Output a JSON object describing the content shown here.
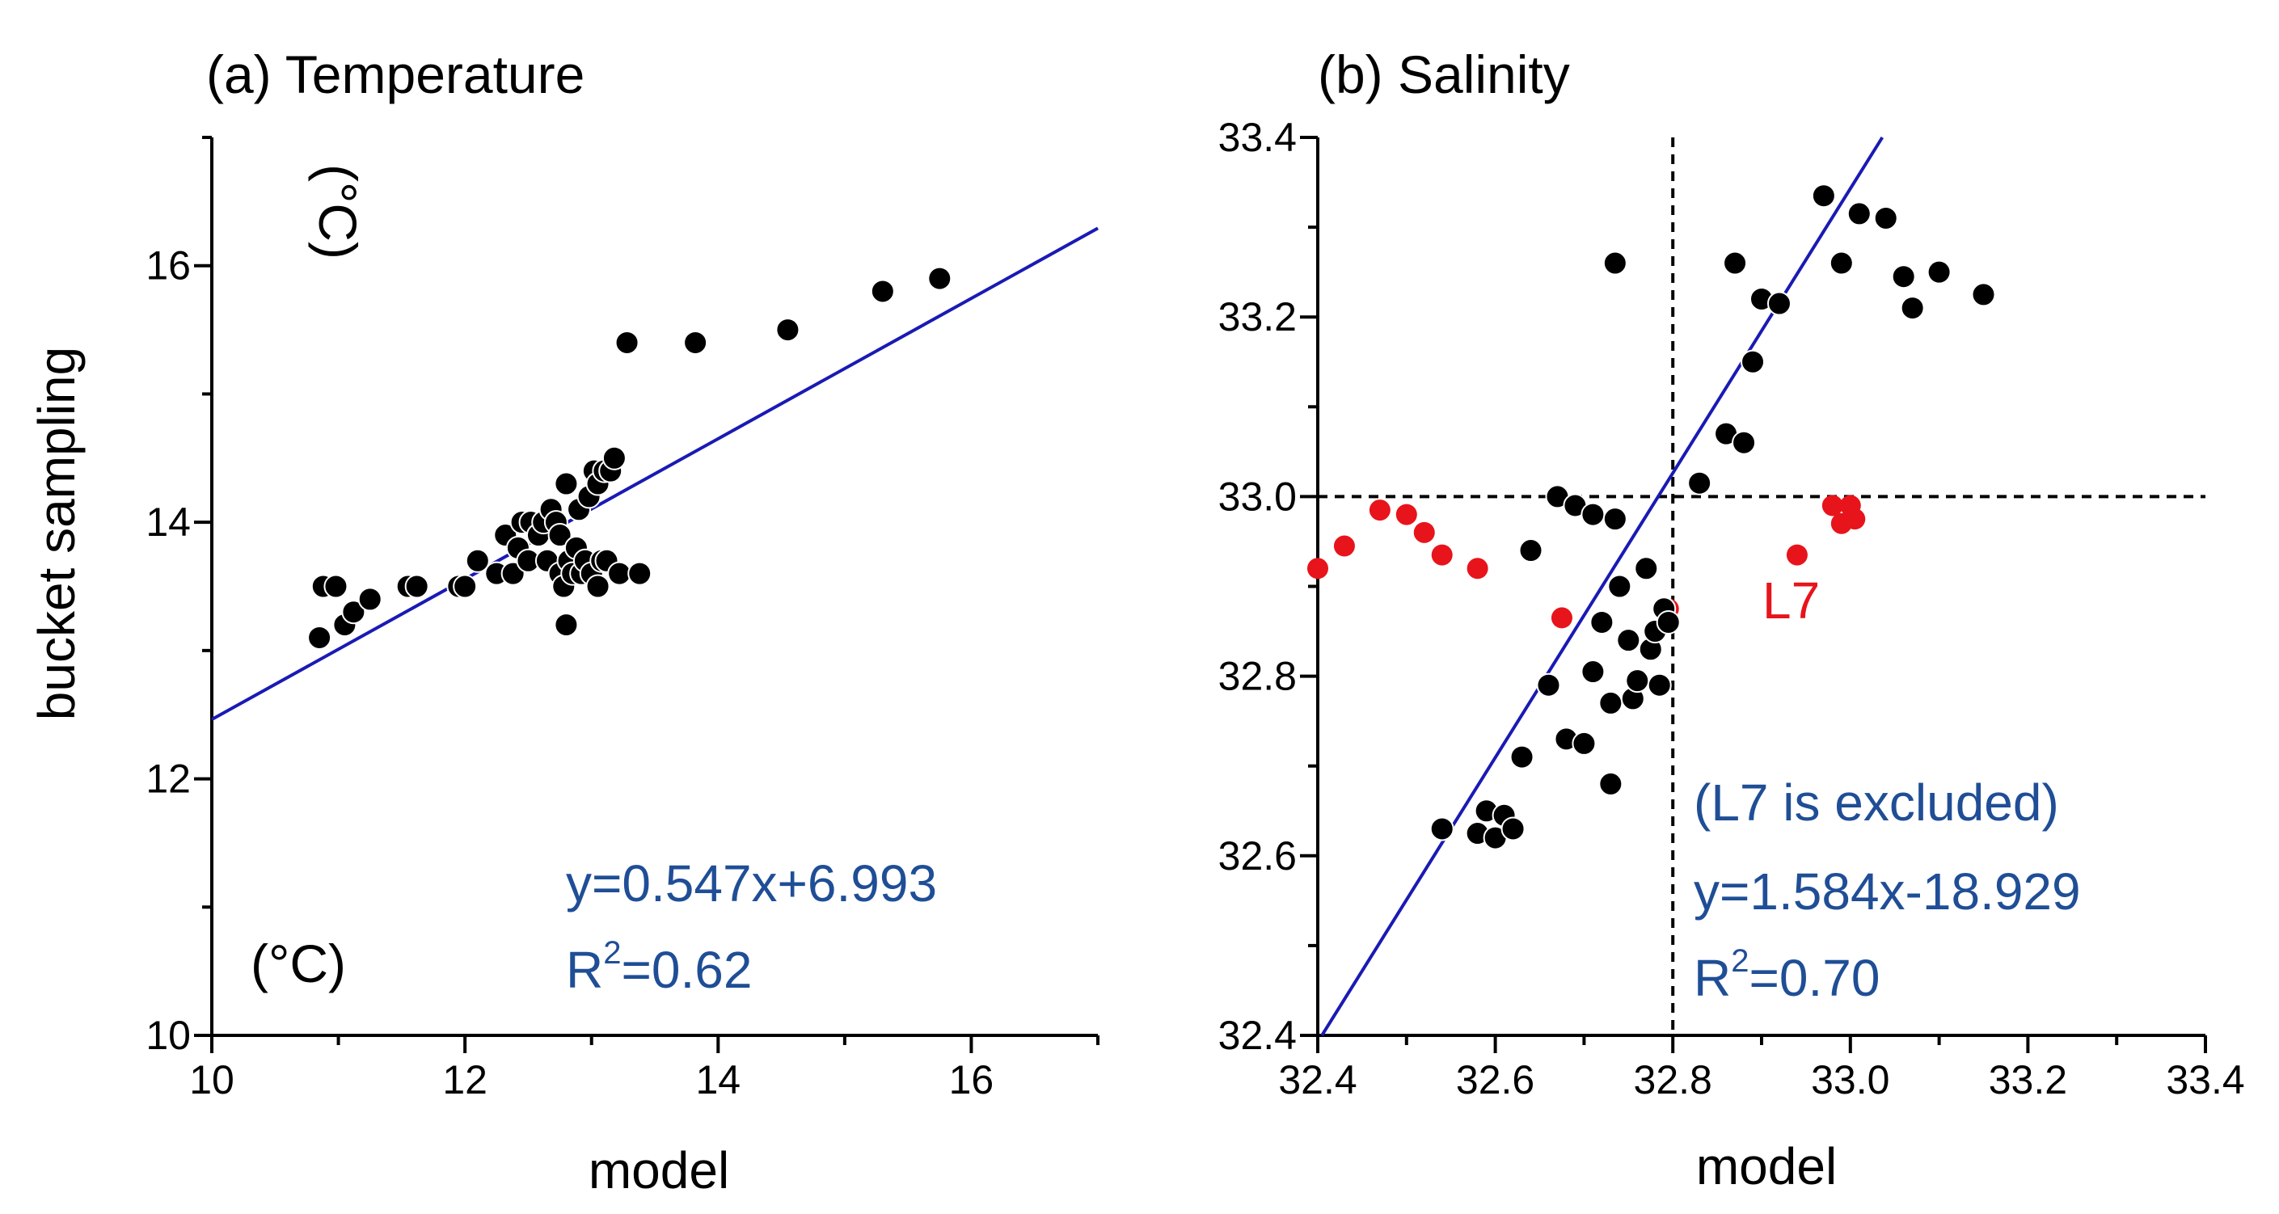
{
  "colors": {
    "fit": "#1a1ab4",
    "annotation": "#1f4e96",
    "point": "#000000",
    "excluded": "#e8141b"
  },
  "shared": {
    "ylabel": "bucket sampling"
  },
  "chart_data": [
    {
      "type": "scatter",
      "title": "(a) Temperature",
      "xlabel": "model",
      "ylabel": "bucket sampling",
      "xlim": [
        10,
        17
      ],
      "ylim": [
        10,
        17
      ],
      "xticks": [
        10,
        12,
        14,
        16
      ],
      "yticks": [
        10,
        12,
        14,
        16
      ],
      "xtick_labels": [
        "10",
        "12",
        "14",
        "16"
      ],
      "ytick_labels": [
        "10",
        "12",
        "14",
        "16"
      ],
      "unit_labels": [
        "(°C)",
        "(°C)"
      ],
      "fit": {
        "slope": 0.547,
        "intercept": 6.993,
        "x_range": [
          10,
          17
        ]
      },
      "equation": "y=0.547x+6.993",
      "r2_prefix": "R",
      "r2_sup": "2",
      "r2_value": "=0.62",
      "series": [
        {
          "name": "samples",
          "points": [
            [
              10.85,
              13.1
            ],
            [
              10.88,
              13.5
            ],
            [
              10.98,
              13.5
            ],
            [
              11.05,
              13.2
            ],
            [
              11.12,
              13.3
            ],
            [
              11.25,
              13.4
            ],
            [
              11.55,
              13.5
            ],
            [
              11.62,
              13.5
            ],
            [
              11.95,
              13.5
            ],
            [
              12.0,
              13.5
            ],
            [
              12.1,
              13.7
            ],
            [
              12.25,
              13.6
            ],
            [
              12.32,
              13.9
            ],
            [
              12.38,
              13.6
            ],
            [
              12.42,
              13.8
            ],
            [
              12.45,
              14.0
            ],
            [
              12.5,
              13.7
            ],
            [
              12.52,
              14.0
            ],
            [
              12.58,
              13.9
            ],
            [
              12.62,
              14.0
            ],
            [
              12.65,
              13.7
            ],
            [
              12.68,
              14.1
            ],
            [
              12.72,
              14.0
            ],
            [
              12.75,
              13.9
            ],
            [
              12.75,
              13.6
            ],
            [
              12.78,
              13.5
            ],
            [
              12.8,
              14.3
            ],
            [
              12.8,
              13.2
            ],
            [
              12.82,
              13.7
            ],
            [
              12.85,
              13.6
            ],
            [
              12.88,
              13.8
            ],
            [
              12.9,
              14.1
            ],
            [
              12.92,
              13.6
            ],
            [
              12.95,
              13.7
            ],
            [
              12.98,
              14.2
            ],
            [
              13.0,
              13.6
            ],
            [
              13.02,
              14.4
            ],
            [
              13.05,
              13.5
            ],
            [
              13.05,
              14.3
            ],
            [
              13.08,
              13.7
            ],
            [
              13.1,
              14.4
            ],
            [
              13.12,
              13.7
            ],
            [
              13.15,
              14.4
            ],
            [
              13.18,
              14.5
            ],
            [
              13.22,
              13.6
            ],
            [
              13.38,
              13.6
            ],
            [
              13.28,
              15.4
            ],
            [
              13.82,
              15.4
            ],
            [
              14.55,
              15.5
            ],
            [
              15.3,
              15.8
            ],
            [
              15.75,
              15.9
            ]
          ]
        }
      ]
    },
    {
      "type": "scatter",
      "title": "(b) Salinity",
      "xlabel": "model",
      "ylabel": "",
      "xlim": [
        32.4,
        33.4
      ],
      "ylim": [
        32.4,
        33.4
      ],
      "xticks": [
        32.4,
        32.6,
        32.8,
        33.0,
        33.2,
        33.4
      ],
      "yticks": [
        32.4,
        32.6,
        32.8,
        33.0,
        33.2,
        33.4
      ],
      "xtick_labels": [
        "32.4",
        "32.6",
        "32.8",
        "33.0",
        "33.2",
        "33.4"
      ],
      "ytick_labels": [
        "32.4",
        "32.6",
        "32.8",
        "33.0",
        "33.2",
        "33.4"
      ],
      "reference_lines": {
        "x": 32.8,
        "y": 33.0
      },
      "fit": {
        "slope": 1.584,
        "intercept": -18.929,
        "x_range": [
          32.4,
          33.04
        ]
      },
      "excluded_label": "L7",
      "note": "(L7 is excluded)",
      "equation": "y=1.584x-18.929",
      "r2_prefix": "R",
      "r2_sup": "2",
      "r2_value": "=0.70",
      "series": [
        {
          "name": "samples",
          "points": [
            [
              32.54,
              32.63
            ],
            [
              32.58,
              32.625
            ],
            [
              32.59,
              32.65
            ],
            [
              32.6,
              32.62
            ],
            [
              32.61,
              32.645
            ],
            [
              32.62,
              32.63
            ],
            [
              32.63,
              32.71
            ],
            [
              32.64,
              32.94
            ],
            [
              32.66,
              32.79
            ],
            [
              32.67,
              33.0
            ],
            [
              32.68,
              32.73
            ],
            [
              32.69,
              32.99
            ],
            [
              32.7,
              32.725
            ],
            [
              32.71,
              32.805
            ],
            [
              32.71,
              32.98
            ],
            [
              32.72,
              32.86
            ],
            [
              32.73,
              32.68
            ],
            [
              32.73,
              32.77
            ],
            [
              32.735,
              32.975
            ],
            [
              32.74,
              32.9
            ],
            [
              32.75,
              32.84
            ],
            [
              32.755,
              32.775
            ],
            [
              32.76,
              32.795
            ],
            [
              32.77,
              32.92
            ],
            [
              32.775,
              32.83
            ],
            [
              32.78,
              32.85
            ],
            [
              32.785,
              32.79
            ],
            [
              32.79,
              32.875
            ],
            [
              32.795,
              32.86
            ],
            [
              32.735,
              33.26
            ],
            [
              32.83,
              33.015
            ],
            [
              32.86,
              33.07
            ],
            [
              32.87,
              33.26
            ],
            [
              32.88,
              33.06
            ],
            [
              32.89,
              33.15
            ],
            [
              32.9,
              33.22
            ],
            [
              32.92,
              33.215
            ],
            [
              32.97,
              33.335
            ],
            [
              32.99,
              33.26
            ],
            [
              33.01,
              33.315
            ],
            [
              33.04,
              33.31
            ],
            [
              33.06,
              33.245
            ],
            [
              33.07,
              33.21
            ],
            [
              33.1,
              33.25
            ],
            [
              33.15,
              33.225
            ]
          ]
        },
        {
          "name": "L7",
          "points": [
            [
              32.4,
              32.92
            ],
            [
              32.43,
              32.945
            ],
            [
              32.47,
              32.985
            ],
            [
              32.5,
              32.98
            ],
            [
              32.52,
              32.96
            ],
            [
              32.54,
              32.935
            ],
            [
              32.58,
              32.92
            ],
            [
              32.675,
              32.865
            ],
            [
              32.795,
              32.875
            ],
            [
              32.94,
              32.935
            ],
            [
              32.98,
              32.99
            ],
            [
              32.99,
              32.97
            ],
            [
              33.0,
              32.99
            ],
            [
              33.005,
              32.975
            ]
          ]
        }
      ]
    }
  ]
}
